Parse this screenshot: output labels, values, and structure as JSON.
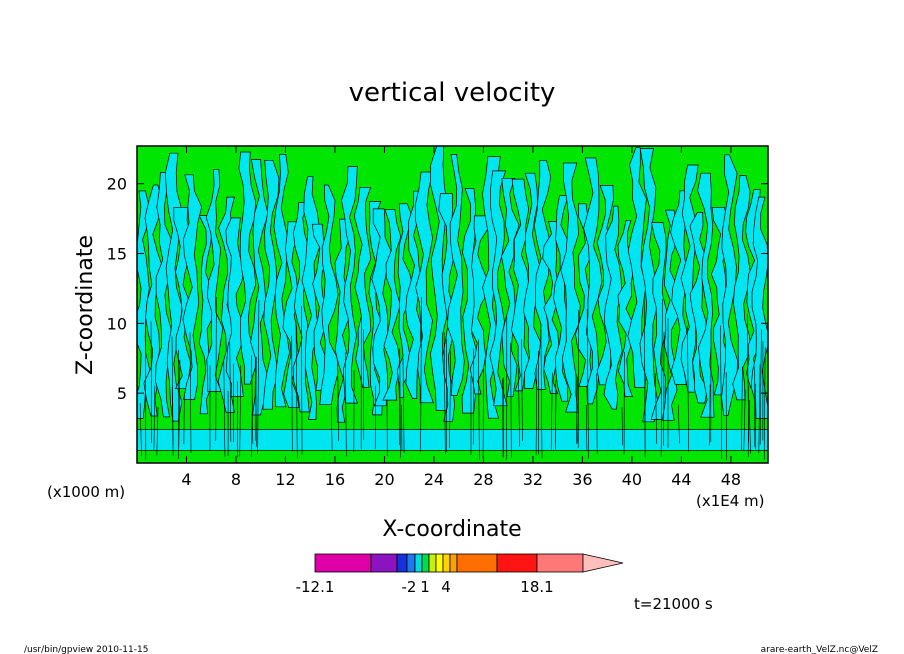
{
  "chart_data": {
    "type": "heatmap",
    "title": "vertical velocity",
    "xlabel": "X-coordinate",
    "ylabel": "Z-coordinate",
    "x_unit_label": "(x1E4 m)",
    "y_unit_label": "(x1000 m)",
    "xlim": [
      0,
      51
    ],
    "ylim": [
      0,
      22.7
    ],
    "x_ticks": [
      "4",
      "8",
      "12",
      "16",
      "20",
      "24",
      "28",
      "32",
      "36",
      "40",
      "44",
      "48"
    ],
    "y_ticks": [
      "5",
      "10",
      "15",
      "20"
    ],
    "colorbar": {
      "labels": [
        "-12.1",
        "-2",
        "1",
        "4",
        "18.1"
      ],
      "colors": [
        "#e000a8",
        "#8c14c0",
        "#1432dc",
        "#1e78f0",
        "#00dcdc",
        "#00dc50",
        "#c8f000",
        "#ffff00",
        "#ffd200",
        "#ffa000",
        "#ff6e00",
        "#ff1414",
        "#ff7878",
        "#ffbebe"
      ]
    },
    "field_colors": {
      "upward_weak": "#00e600",
      "downward_weak": "#00e6f0",
      "contour": "#000000"
    },
    "time_label": "t=21000 s"
  },
  "footer": {
    "left": "/usr/bin/gpview   2010-11-15",
    "right": "arare-earth_VelZ.nc@VelZ"
  }
}
